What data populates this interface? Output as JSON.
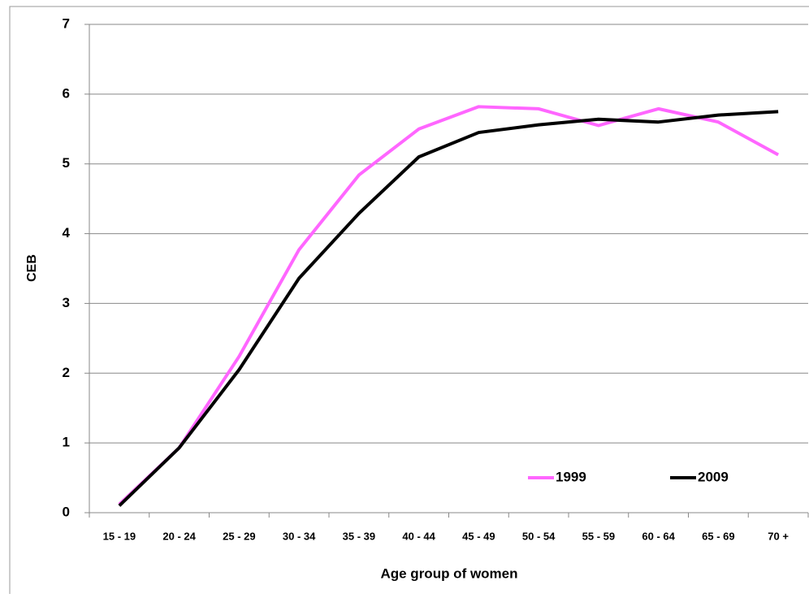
{
  "chart_data": {
    "type": "line",
    "x_label": "Age group of women",
    "y_label": "CEB",
    "categories": [
      "15 - 19",
      "20 - 24",
      "25 - 29",
      "30 - 34",
      "35 - 39",
      "40 - 44",
      "45 - 49",
      "50 - 54",
      "55 - 59",
      "60 - 64",
      "65 - 69",
      "70 +"
    ],
    "series": [
      {
        "name": "1999",
        "color": "#ff66ff",
        "values": [
          0.12,
          0.93,
          2.24,
          3.77,
          4.84,
          5.5,
          5.82,
          5.79,
          5.55,
          5.79,
          5.6,
          5.13
        ]
      },
      {
        "name": "2009",
        "color": "#000000",
        "values": [
          0.1,
          0.93,
          2.05,
          3.36,
          4.29,
          5.1,
          5.45,
          5.56,
          5.64,
          5.6,
          5.7,
          5.75
        ]
      }
    ],
    "ylim": [
      0,
      7
    ],
    "yticks": [
      0,
      1,
      2,
      3,
      4,
      5,
      6,
      7
    ],
    "grid": true,
    "legend": "bottom-right"
  }
}
